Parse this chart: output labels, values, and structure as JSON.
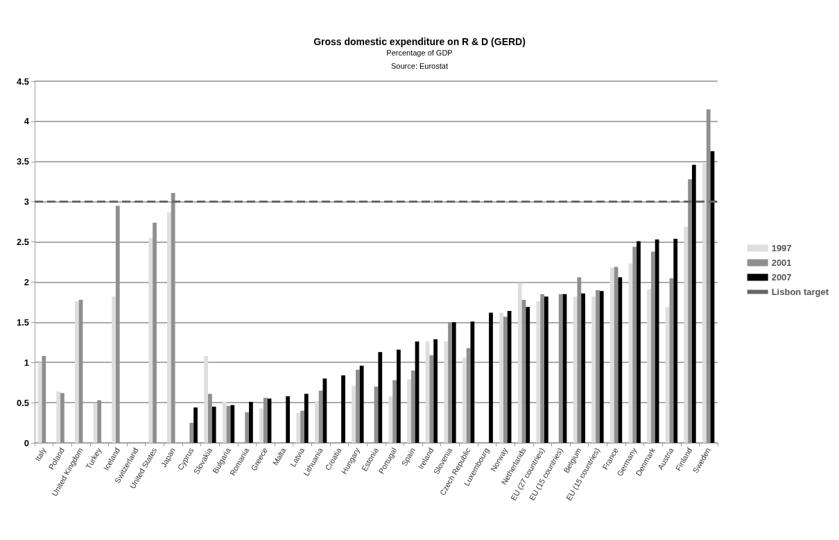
{
  "chart_data": {
    "type": "bar",
    "title": "Gross domestic expenditure on R & D (GERD)",
    "subtitle": "Percentage of GDP",
    "annotations": [
      "Source: Eurostat"
    ],
    "categories": [
      "Italy",
      "Poland",
      "United Kingdom",
      "Turkey",
      "Iceland",
      "Switzerland",
      "United States",
      "Japan",
      "Cyprus",
      "Slovakia",
      "Bulgaria",
      "Romania",
      "Greece",
      "Malta",
      "Latvia",
      "Lithuania",
      "Croatia",
      "Hungary",
      "Estonia",
      "Portugal",
      "Spain",
      "Ireland",
      "Slovenia",
      "Czech Republic",
      "Luxembourg",
      "Norway",
      "Netherlands",
      "EU (27 countries)",
      "EU (15 countries)",
      "Belgium",
      "EU (15 countries)",
      "France",
      "Germany",
      "Denmark",
      "Austria",
      "Finland",
      "Sweden"
    ],
    "series": [
      {
        "name": "1997",
        "color": "#dedede",
        "values": [
          1.0,
          0.64,
          1.76,
          0.49,
          1.82,
          null,
          2.55,
          2.87,
          null,
          1.08,
          0.51,
          null,
          0.43,
          null,
          0.37,
          0.52,
          null,
          0.71,
          null,
          0.58,
          0.79,
          1.26,
          1.26,
          1.06,
          null,
          1.62,
          1.99,
          1.76,
          null,
          1.82,
          1.82,
          2.18,
          2.23,
          1.91,
          1.69,
          2.69,
          3.48
        ]
      },
      {
        "name": "2001",
        "color": "#8f8f8f",
        "values": [
          1.08,
          0.62,
          1.78,
          0.53,
          2.95,
          null,
          2.74,
          3.11,
          0.25,
          0.61,
          0.46,
          0.38,
          0.56,
          null,
          0.4,
          0.65,
          null,
          0.91,
          0.7,
          0.78,
          0.9,
          1.09,
          1.5,
          1.18,
          null,
          1.57,
          1.78,
          1.85,
          1.85,
          2.06,
          1.9,
          2.19,
          2.44,
          2.38,
          2.05,
          3.28,
          4.15
        ]
      },
      {
        "name": "2007",
        "color": "#000000",
        "values": [
          null,
          null,
          null,
          null,
          null,
          null,
          null,
          null,
          0.44,
          0.45,
          0.47,
          0.51,
          0.55,
          0.58,
          0.61,
          0.8,
          0.84,
          0.96,
          1.13,
          1.16,
          1.26,
          1.29,
          1.5,
          1.51,
          1.62,
          1.64,
          1.69,
          1.82,
          1.85,
          1.86,
          1.89,
          2.06,
          2.51,
          2.53,
          2.54,
          3.46,
          3.63
        ]
      }
    ],
    "ref_lines": [
      {
        "axis": "y",
        "value": 3,
        "label": "Lisbon target",
        "color": "#666666",
        "line_style": "dashed"
      }
    ],
    "ylim": [
      0,
      4.5
    ],
    "yticks": [
      0,
      0.5,
      1,
      1.5,
      2,
      2.5,
      3,
      3.5,
      4,
      4.5
    ],
    "grid": "y",
    "legend": "right"
  }
}
